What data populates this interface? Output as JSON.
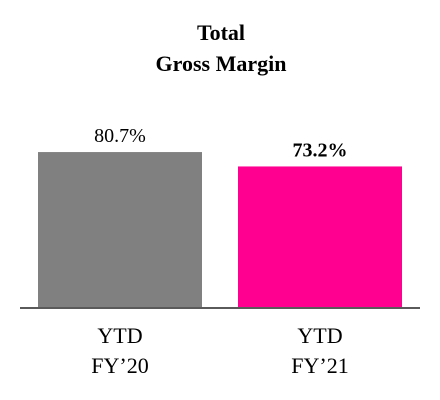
{
  "chart_data": {
    "type": "bar",
    "title_lines": [
      "Total",
      "Gross Margin"
    ],
    "categories": [
      [
        "YTD",
        "FY’20"
      ],
      [
        "YTD",
        "FY’21"
      ]
    ],
    "values": [
      80.7,
      73.2
    ],
    "value_labels": [
      "80.7%",
      "73.2%"
    ],
    "value_label_bold": [
      false,
      true
    ],
    "colors": [
      "#808080",
      "#ff0090"
    ],
    "axis_color": "#5a5a5a",
    "xlabel": "",
    "ylabel": "",
    "ylim": [
      0,
      100
    ],
    "grid": false,
    "legend": "none"
  }
}
